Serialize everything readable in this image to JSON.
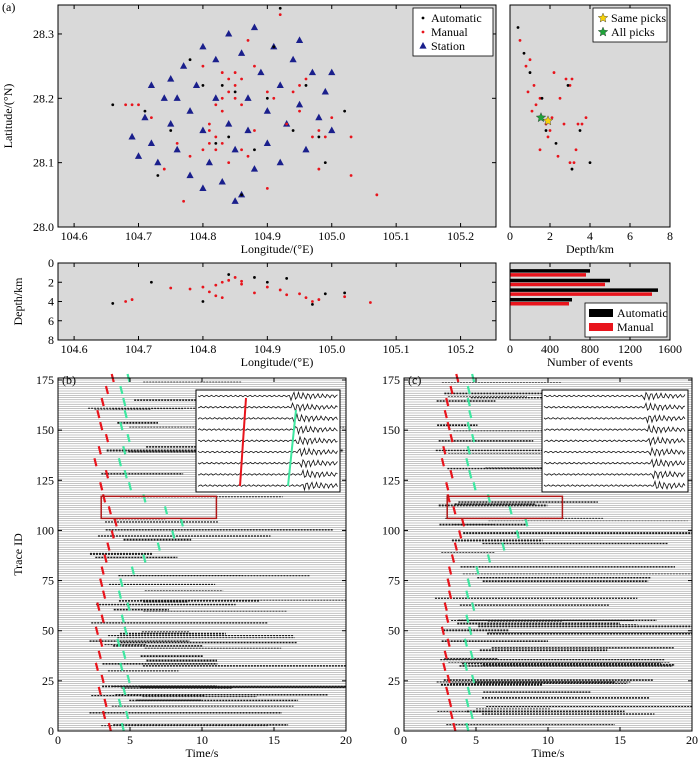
{
  "chart_data": [
    {
      "type": "scatter",
      "label": "(a)",
      "xlabel": "Longitude/(°E)",
      "ylabel": "Latitude/(°N)",
      "xlim": [
        104.575,
        105.255
      ],
      "ylim": [
        28.0,
        28.345
      ],
      "xticks": [
        104.6,
        104.7,
        104.8,
        104.9,
        {
          "value": 105,
          "label": "105.0"
        },
        105.1,
        105.2
      ],
      "yticks": [
        {
          "value": 28,
          "label": "28.0"
        },
        28.1,
        28.2,
        28.3
      ],
      "legend": "upper right",
      "background": "#d9d9d9",
      "series": [
        {
          "name": "Automatic",
          "color": "#000000",
          "marker": "dot",
          "x": [
            104.66,
            104.71,
            104.83,
            104.85,
            104.82,
            104.84,
            104.96,
            104.98,
            104.99,
            104.9,
            104.92,
            104.78,
            104.73,
            104.88,
            104.94,
            105.02,
            104.86,
            104.8,
            104.75,
            104.91
          ],
          "values": [
            28.19,
            28.18,
            28.22,
            28.21,
            28.13,
            28.14,
            28.22,
            28.14,
            28.1,
            28.2,
            28.34,
            28.26,
            28.08,
            28.12,
            28.15,
            28.18,
            28.05,
            28.22,
            28.15,
            28.28
          ]
        },
        {
          "name": "Manual",
          "color": "#e8141c",
          "marker": "dot",
          "x": [
            104.68,
            104.69,
            104.7,
            104.83,
            104.84,
            104.85,
            104.84,
            104.83,
            104.82,
            104.83,
            104.85,
            104.86,
            104.82,
            104.81,
            104.82,
            104.83,
            104.8,
            104.81,
            104.84,
            104.86,
            104.87,
            104.9,
            104.91,
            104.88,
            104.95,
            104.96,
            104.94,
            104.97,
            104.98,
            104.99,
            104.98,
            105.03,
            104.87,
            104.92,
            104.93,
            104.78,
            104.76,
            104.74,
            105.03,
            104.9,
            104.86,
            104.85,
            104.81,
            104.95,
            105.0,
            104.88,
            104.72,
            104.8,
            104.77,
            105.07
          ],
          "values": [
            28.19,
            28.19,
            28.19,
            28.24,
            28.23,
            28.22,
            28.21,
            28.2,
            28.19,
            28.18,
            28.2,
            28.19,
            28.14,
            28.13,
            28.12,
            28.13,
            28.12,
            28.15,
            28.1,
            28.12,
            28.11,
            28.21,
            28.2,
            28.25,
            28.22,
            28.23,
            28.21,
            28.14,
            28.15,
            28.14,
            28.09,
            28.14,
            28.29,
            28.33,
            28.16,
            28.11,
            28.13,
            28.09,
            28.08,
            28.06,
            28.23,
            28.24,
            28.16,
            28.18,
            28.17,
            28.15,
            28.17,
            28.25,
            28.04,
            28.05
          ]
        },
        {
          "name": "Station",
          "color": "#1a1f8c",
          "marker": "triangle",
          "x": [
            104.69,
            104.7,
            104.71,
            104.72,
            104.73,
            104.74,
            104.75,
            104.75,
            104.76,
            104.77,
            104.78,
            104.78,
            104.79,
            104.8,
            104.8,
            104.81,
            104.82,
            104.82,
            104.83,
            104.84,
            104.84,
            104.85,
            104.86,
            104.86,
            104.87,
            104.87,
            104.88,
            104.88,
            104.89,
            104.9,
            104.9,
            104.91,
            104.92,
            104.92,
            104.93,
            104.94,
            104.95,
            104.96,
            104.97,
            104.98,
            104.99,
            105.0,
            105.0,
            104.85,
            104.8,
            104.76,
            104.72,
            104.95
          ],
          "values": [
            28.14,
            28.11,
            28.17,
            28.13,
            28.1,
            28.2,
            28.16,
            28.23,
            28.12,
            28.25,
            28.18,
            28.08,
            28.22,
            28.28,
            28.15,
            28.1,
            28.26,
            28.2,
            28.07,
            28.3,
            28.16,
            28.12,
            28.27,
            28.05,
            28.2,
            28.15,
            28.31,
            28.09,
            28.24,
            28.18,
            28.13,
            28.28,
            28.22,
            28.1,
            28.16,
            28.26,
            28.19,
            28.12,
            28.24,
            28.17,
            28.21,
            28.15,
            28.24,
            28.04,
            28.06,
            28.2,
            28.22,
            28.29
          ]
        }
      ]
    },
    {
      "type": "scatter",
      "xlabel": "Depth/km",
      "xlim": [
        0,
        8
      ],
      "ylim": [
        28.0,
        28.345
      ],
      "xticks": [
        0,
        2,
        4,
        6,
        8
      ],
      "legend": "upper right",
      "background": "#d9d9d9",
      "series": [
        {
          "name": "Same picks",
          "color": "#f5d10a",
          "marker": "star",
          "x": [
            1.9
          ],
          "values": [
            28.165
          ]
        },
        {
          "name": "All picks",
          "color": "#1fa33a",
          "marker": "star",
          "x": [
            1.55
          ],
          "values": [
            28.17
          ]
        },
        {
          "color": "#000000",
          "marker": "dot",
          "x": [
            0.4,
            1.0,
            1.6,
            2.9,
            1.8,
            3.5,
            3.1,
            2.3,
            0.7,
            4.0
          ],
          "values": [
            28.31,
            28.24,
            28.2,
            28.22,
            28.15,
            28.15,
            28.09,
            28.13,
            28.27,
            28.1
          ]
        },
        {
          "color": "#e8141c",
          "marker": "dot",
          "x": [
            0.5,
            0.8,
            1.0,
            1.2,
            1.5,
            1.3,
            2.8,
            3.0,
            3.1,
            1.8,
            2.0,
            1.9,
            2.1,
            3.4,
            3.6,
            3.8,
            2.4,
            3.0,
            3.2,
            1.5,
            2.5,
            0.9,
            2.2,
            1.1,
            2.7,
            3.3
          ],
          "values": [
            28.29,
            28.25,
            28.26,
            28.22,
            28.2,
            28.19,
            28.23,
            28.22,
            28.23,
            28.16,
            28.15,
            28.14,
            28.17,
            28.16,
            28.16,
            28.17,
            28.11,
            28.1,
            28.1,
            28.12,
            28.2,
            28.21,
            28.24,
            28.18,
            28.16,
            28.12
          ]
        }
      ]
    },
    {
      "type": "scatter",
      "xlabel": "Longitude/(°E)",
      "ylabel": "Depth/km",
      "xlim": [
        104.575,
        105.255
      ],
      "ylim": [
        0,
        8
      ],
      "y_inverted": true,
      "xticks": [
        104.6,
        104.7,
        104.8,
        104.9,
        {
          "value": 105,
          "label": "105.0"
        },
        105.1,
        105.2
      ],
      "yticks": [
        0,
        2,
        4,
        6,
        8
      ],
      "background": "#d9d9d9",
      "series": [
        {
          "color": "#000000",
          "marker": "dot",
          "x": [
            104.66,
            104.72,
            104.84,
            104.88,
            104.93,
            104.99,
            105.02,
            104.8,
            104.9,
            104.97
          ],
          "values": [
            4.2,
            2.0,
            1.2,
            1.5,
            1.6,
            3.2,
            3.1,
            4.0,
            2.0,
            4.3
          ]
        },
        {
          "color": "#e8141c",
          "marker": "dot",
          "x": [
            104.68,
            104.69,
            104.8,
            104.82,
            104.83,
            104.84,
            104.85,
            104.86,
            104.82,
            104.83,
            104.78,
            104.9,
            104.92,
            104.95,
            104.96,
            104.97,
            104.98,
            104.93,
            104.88,
            105.02,
            105.06,
            104.75,
            104.86,
            104.81
          ],
          "values": [
            4.0,
            3.8,
            2.5,
            2.3,
            2.0,
            1.8,
            1.5,
            1.9,
            3.4,
            3.6,
            2.7,
            2.5,
            2.8,
            3.2,
            3.6,
            4.0,
            3.8,
            3.3,
            3.1,
            3.5,
            4.1,
            2.6,
            2.2,
            3.0
          ]
        }
      ]
    },
    {
      "type": "barh",
      "xlabel": "Number of events",
      "xlim": [
        0,
        1600
      ],
      "ylim": [
        0,
        8
      ],
      "y_inverted": true,
      "xticks": [
        0,
        400,
        800,
        1200,
        1600
      ],
      "legend": "lower right",
      "background": "#d9d9d9",
      "y": [
        1,
        2,
        3,
        4
      ],
      "series": [
        {
          "name": "Automatic",
          "color": "#000000",
          "values": [
            800,
            1000,
            1480,
            620
          ]
        },
        {
          "name": "Manual",
          "color": "#e8141c",
          "values": [
            760,
            950,
            1420,
            590
          ]
        }
      ]
    },
    {
      "type": "picks",
      "label": "(b)",
      "xlabel": "Time/s",
      "ylabel": "Trace ID",
      "xlim": [
        0,
        20
      ],
      "ylim": [
        0,
        176
      ],
      "xticks": [
        0,
        5,
        10,
        15,
        20
      ],
      "yticks": [
        0,
        25,
        50,
        75,
        100,
        125,
        150,
        175
      ],
      "background": "#ffffff",
      "highlight": {
        "x": [
          3,
          11
        ],
        "y": [
          106,
          117
        ],
        "color": "#b01818"
      },
      "series": [
        {
          "color": "#e8141c",
          "x": [
            3.6,
            3.2,
            3.3,
            2.9,
            3.1,
            2.7,
            2.9,
            3.0,
            2.7,
            3.1,
            2.8,
            3.2,
            3.0,
            3.1,
            3.3,
            3.5,
            3.8,
            4.0,
            3.6,
            3.2,
            3.0,
            3.4,
            2.6,
            2.9,
            3.4,
            3.0,
            2.8,
            3.1,
            3.4,
            3.8
          ],
          "values": [
            2,
            8,
            14,
            20,
            26,
            32,
            38,
            44,
            50,
            56,
            62,
            68,
            74,
            80,
            86,
            92,
            98,
            104,
            110,
            116,
            122,
            128,
            134,
            140,
            146,
            152,
            158,
            164,
            170,
            176
          ]
        },
        {
          "color": "#3ee6a0",
          "x": [
            4.5,
            4.8,
            4.3,
            4.6,
            4.9,
            4.4,
            4.6,
            4.2,
            4.7,
            4.5,
            4.9,
            4.3,
            4.4,
            5.2,
            6.0,
            7.0,
            8.0,
            8.6,
            7.5,
            6.0,
            5.0,
            4.7,
            4.3,
            4.6,
            4.9,
            4.4,
            4.7,
            4.6,
            4.4,
            4.9
          ],
          "values": [
            2,
            8,
            14,
            20,
            26,
            32,
            38,
            44,
            50,
            56,
            62,
            68,
            74,
            80,
            86,
            92,
            98,
            104,
            110,
            116,
            122,
            128,
            134,
            140,
            146,
            152,
            158,
            164,
            170,
            176
          ]
        }
      ]
    },
    {
      "type": "picks",
      "label": "(c)",
      "xlabel": "Time/s",
      "xlim": [
        0,
        20
      ],
      "ylim": [
        0,
        176
      ],
      "xticks": [
        0,
        5,
        10,
        15,
        20
      ],
      "yticks": [
        0,
        25,
        50,
        75,
        100,
        125,
        150,
        175
      ],
      "background": "#ffffff",
      "highlight": {
        "x": [
          3,
          11
        ],
        "y": [
          106,
          117
        ],
        "color": "#b01818"
      },
      "series": [
        {
          "color": "#e8141c",
          "x": [
            3.5,
            3.3,
            3.2,
            3.0,
            3.1,
            2.8,
            2.9,
            3.1,
            2.7,
            3.0,
            2.9,
            3.2,
            3.1,
            3.2,
            3.4,
            3.6,
            3.9,
            4.1,
            3.5,
            3.1,
            3.0,
            3.3,
            2.7,
            2.8,
            3.3,
            3.1,
            2.9,
            3.0,
            3.3,
            3.7
          ],
          "values": [
            2,
            8,
            14,
            20,
            26,
            32,
            38,
            44,
            50,
            56,
            62,
            68,
            74,
            80,
            86,
            92,
            98,
            104,
            110,
            116,
            122,
            128,
            134,
            140,
            146,
            152,
            158,
            164,
            170,
            176
          ]
        },
        {
          "color": "#3ee6a0",
          "x": [
            4.4,
            4.7,
            4.4,
            4.5,
            4.8,
            4.3,
            4.7,
            4.3,
            4.6,
            4.4,
            4.8,
            4.4,
            4.5,
            5.1,
            5.9,
            6.9,
            7.9,
            8.5,
            7.4,
            5.9,
            4.9,
            4.6,
            4.4,
            4.5,
            4.8,
            4.5,
            4.6,
            4.5,
            4.5,
            4.8
          ],
          "values": [
            2,
            8,
            14,
            20,
            26,
            32,
            38,
            44,
            50,
            56,
            62,
            68,
            74,
            80,
            86,
            92,
            98,
            104,
            110,
            116,
            122,
            128,
            134,
            140,
            146,
            152,
            158,
            164,
            170,
            176
          ]
        }
      ]
    }
  ]
}
